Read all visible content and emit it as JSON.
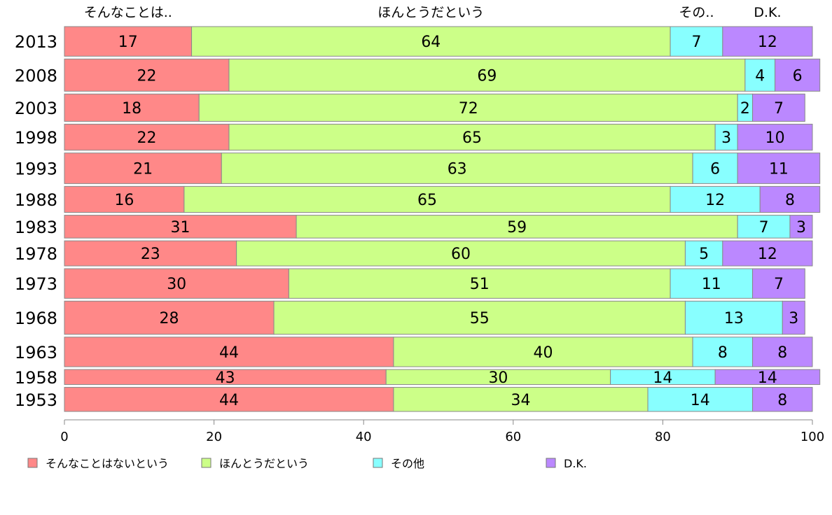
{
  "chart_data": {
    "type": "bar",
    "orientation": "horizontal",
    "stacked": true,
    "xlim": [
      0,
      100
    ],
    "x_ticks": [
      0,
      20,
      40,
      60,
      80,
      100
    ],
    "categories": [
      "2013",
      "2008",
      "2003",
      "1998",
      "1993",
      "1988",
      "1983",
      "1978",
      "1973",
      "1968",
      "1963",
      "1958",
      "1953"
    ],
    "category_weights": [
      1.0,
      1.08,
      0.93,
      0.89,
      1.03,
      0.89,
      0.79,
      0.86,
      1.0,
      1.11,
      1.0,
      0.55,
      0.83
    ],
    "top_labels": [
      "そんなことは..",
      "ほんとうだという",
      "その..",
      "D.K."
    ],
    "series": [
      {
        "name": "そんなことはないという",
        "color": "#ff8888",
        "values": [
          17,
          22,
          18,
          22,
          21,
          16,
          31,
          23,
          30,
          28,
          44,
          43,
          44
        ]
      },
      {
        "name": "ほんとうだという",
        "color": "#ccff88",
        "values": [
          64,
          69,
          72,
          65,
          63,
          65,
          59,
          60,
          51,
          55,
          40,
          30,
          34
        ]
      },
      {
        "name": "その他",
        "color": "#88ffff",
        "values": [
          7,
          4,
          2,
          3,
          6,
          12,
          7,
          5,
          11,
          13,
          8,
          14,
          14
        ]
      },
      {
        "name": "D.K.",
        "color": "#bb88ff",
        "values": [
          12,
          6,
          7,
          10,
          11,
          8,
          3,
          12,
          7,
          3,
          8,
          14,
          8
        ]
      }
    ],
    "grid": false,
    "legend_position": "bottom"
  }
}
